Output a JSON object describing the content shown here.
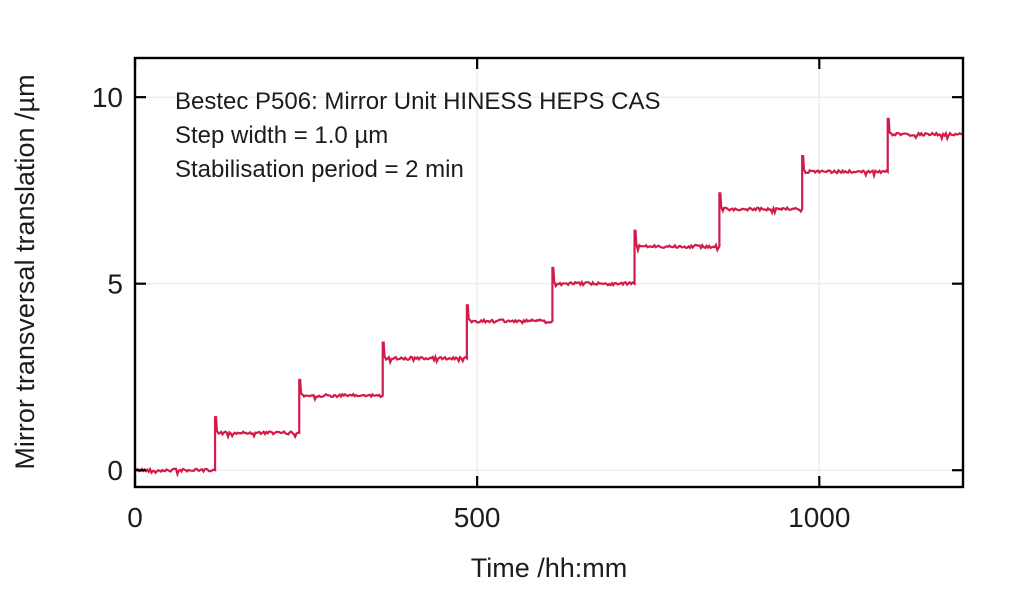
{
  "figure": {
    "background": "#ffffff",
    "frame_color": "#000000",
    "grid_color": "#ececec",
    "text_color": "#1c1c1c"
  },
  "annotation": {
    "lines": [
      "Bestec P506: Mirror Unit HINESS HEPS CAS",
      "Step width = 1.0 µm",
      "Stabilisation period = 2 min"
    ]
  },
  "axes": {
    "x_label": "Time /hh:mm",
    "y_label": "Mirror transversal translation /µm"
  },
  "chart_data": {
    "type": "line",
    "subtype": "staircase-step-response",
    "title": "Bestec P506: Mirror Unit HINESS HEPS CAS",
    "annotations": [
      "Step width = 1.0 µm",
      "Stabilisation period = 2 min"
    ],
    "xlabel": "Time /hh:mm",
    "ylabel": "Mirror transversal translation /µm",
    "xlim": [
      0,
      1210
    ],
    "ylim": [
      -0.45,
      11.05
    ],
    "x_ticks": [
      0,
      500,
      1000
    ],
    "y_ticks": [
      0,
      5,
      10
    ],
    "grid": true,
    "legend": false,
    "line_color": "#d11c4b",
    "series": [
      {
        "name": "Mirror transversal translation",
        "description": "Staircase of 1.0 um steps with overshoot spike at each rising edge, plateau noise between steps",
        "steps": [
          {
            "t_start": 0,
            "level": 0
          },
          {
            "t_start": 117,
            "level": 1
          },
          {
            "t_start": 240,
            "level": 2
          },
          {
            "t_start": 362,
            "level": 3
          },
          {
            "t_start": 485,
            "level": 4
          },
          {
            "t_start": 610,
            "level": 5
          },
          {
            "t_start": 730,
            "level": 6
          },
          {
            "t_start": 854,
            "level": 7
          },
          {
            "t_start": 975,
            "level": 8
          },
          {
            "t_start": 1100,
            "level": 9
          }
        ],
        "t_end": 1210,
        "overshoot": 0.42,
        "noise_amplitude": 0.04
      }
    ]
  }
}
